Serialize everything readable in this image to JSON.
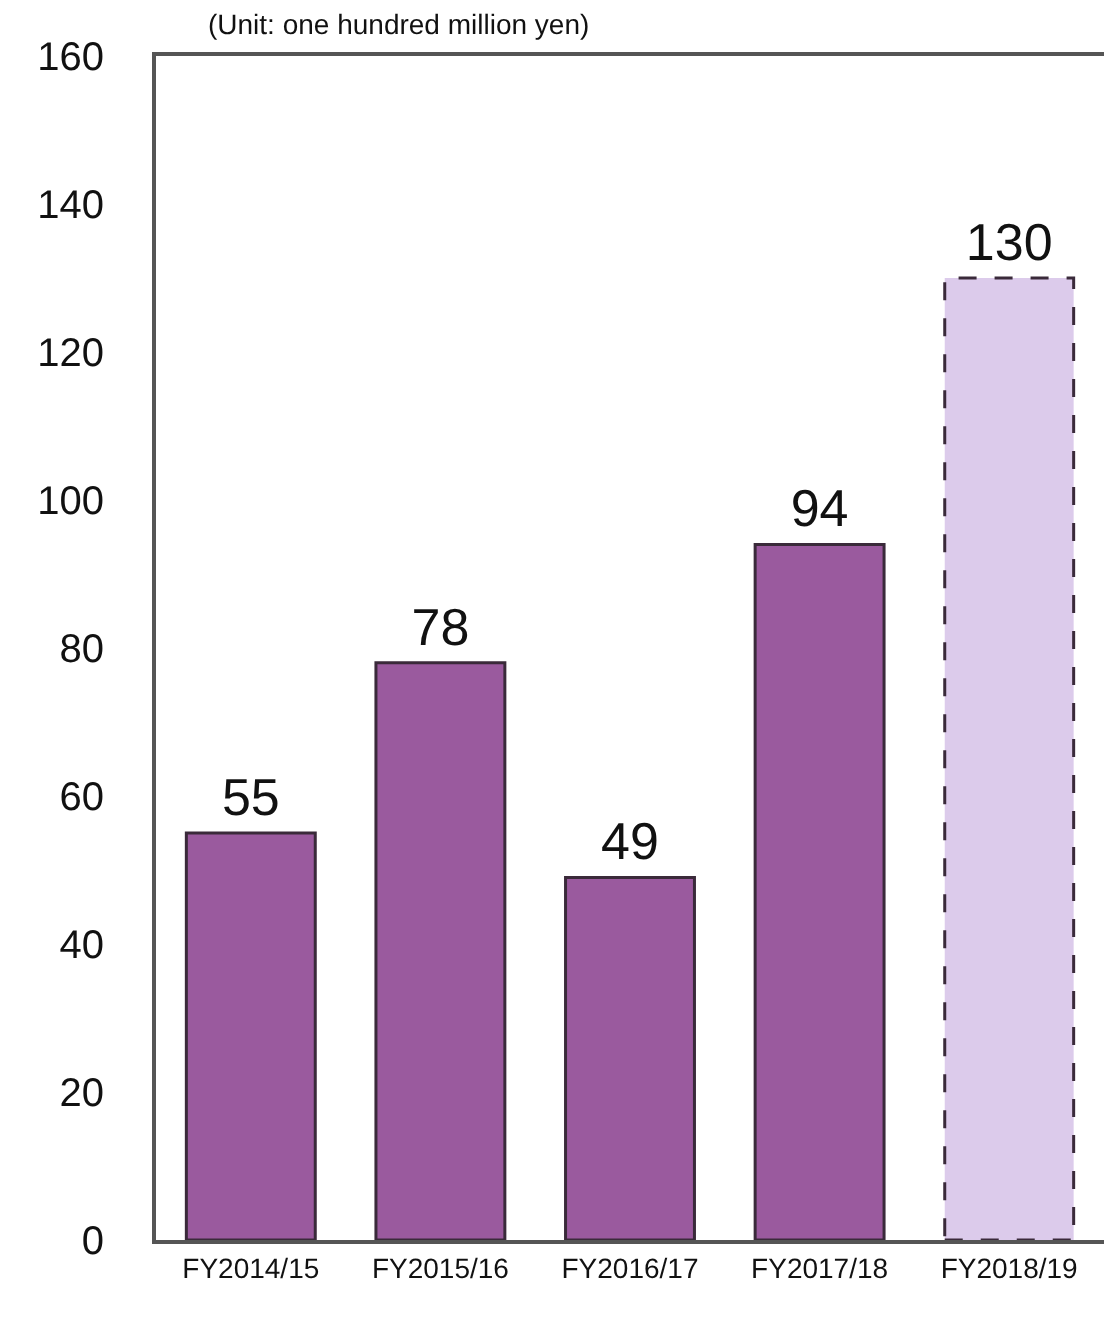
{
  "chart_data": {
    "type": "bar",
    "subtitle": "(Unit: one hundred million yen)",
    "categories": [
      "FY2014/15",
      "FY2015/16",
      "FY2016/17",
      "FY2017/18",
      "FY2018/19"
    ],
    "series": [
      {
        "color": "#9a5a9e",
        "values": [
          55,
          78,
          49,
          94,
          null
        ],
        "line_style": "solid"
      },
      {
        "color": "#dccbeb",
        "values": [
          null,
          null,
          null,
          null,
          130
        ],
        "line_style": "dashed"
      }
    ],
    "ylim": [
      0,
      160
    ],
    "yticks": [
      0,
      20,
      40,
      60,
      80,
      100,
      120,
      140,
      160
    ],
    "data_labels": true
  }
}
